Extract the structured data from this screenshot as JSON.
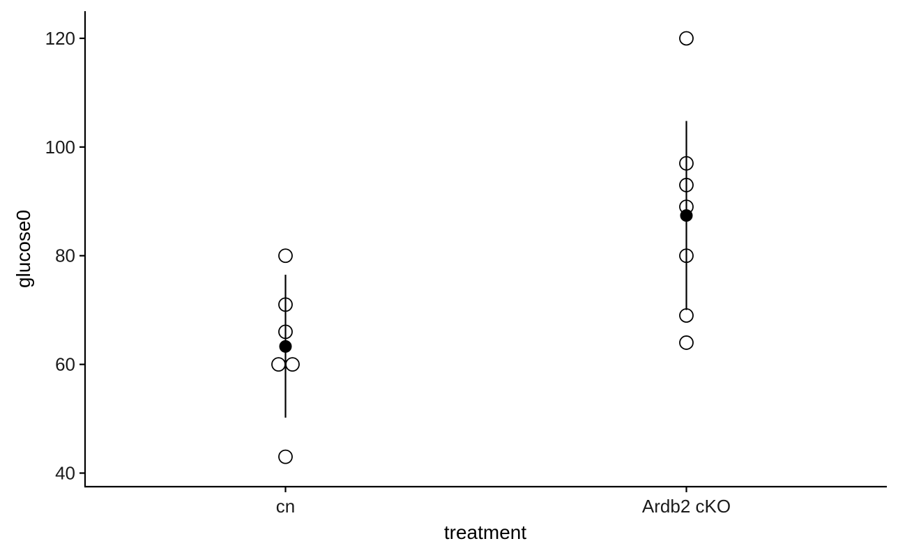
{
  "chart_data": {
    "type": "scatter",
    "subtype": "strip plot with group mean and error bar",
    "xlabel": "treatment",
    "ylabel": "glucose0",
    "categories": [
      "cn",
      "Ardb2 cKO"
    ],
    "ylim": [
      37.5,
      125
    ],
    "yticks": [
      40,
      60,
      80,
      100,
      120
    ],
    "grid": false,
    "legend": "none",
    "points": [
      {
        "group": "cn",
        "values": [
          80,
          71,
          66,
          60,
          60,
          43
        ]
      },
      {
        "group": "Ardb2 cKO",
        "values": [
          120,
          97,
          93,
          89,
          80,
          69,
          64
        ]
      }
    ],
    "summary": [
      {
        "group": "cn",
        "mean": 63.3,
        "lower": 50.2,
        "upper": 76.5
      },
      {
        "group": "Ardb2 cKO",
        "mean": 87.4,
        "lower": 70.0,
        "upper": 104.8
      }
    ],
    "colors": {
      "point_fill": "#ffffff",
      "point_stroke": "#000000",
      "mean": "#000000",
      "axis": "#000000"
    }
  }
}
